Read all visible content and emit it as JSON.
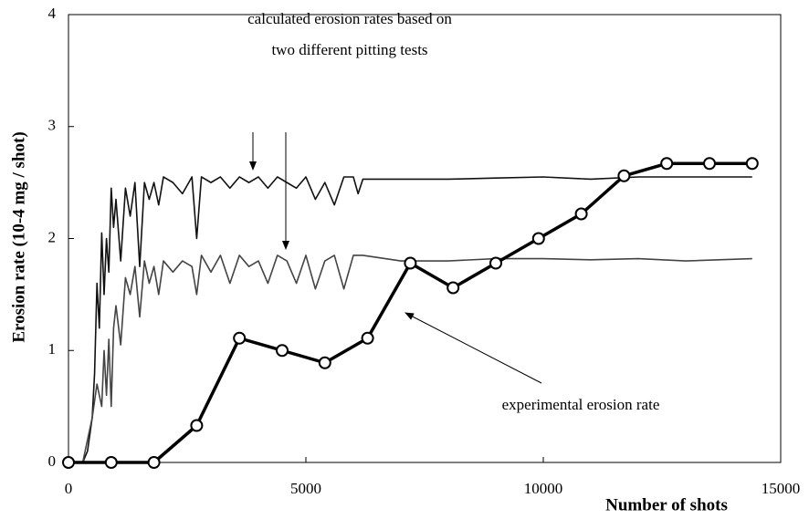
{
  "chart_data": {
    "type": "line",
    "xlabel": "Number of shots",
    "ylabel": "Erosion rate (10-4 mg / shot)",
    "xlim": [
      0,
      15000
    ],
    "ylim": [
      0,
      4
    ],
    "xticks": [
      0,
      5000,
      10000,
      15000
    ],
    "yticks": [
      0,
      1,
      2,
      3,
      4
    ],
    "grid": false,
    "annotations": [
      "calculated erosion rates based on",
      "two different pitting tests",
      "experimental erosion rate"
    ],
    "series": [
      {
        "color": "#000000",
        "markers": true,
        "width": 3.5,
        "x": [
          0,
          900,
          1800,
          2700,
          3600,
          4500,
          5400,
          6300,
          7200,
          8100,
          9000,
          9900,
          10800,
          11700,
          12600,
          13500,
          14400
        ],
        "values": [
          0,
          0,
          0,
          0.33,
          1.11,
          1.0,
          0.89,
          1.11,
          1.78,
          1.56,
          1.78,
          2.0,
          2.22,
          2.56,
          2.67,
          2.67,
          2.67
        ]
      },
      {
        "color": "#111111",
        "markers": false,
        "width": 1.6,
        "x": [
          0,
          200,
          300,
          400,
          500,
          550,
          600,
          650,
          700,
          750,
          800,
          850,
          900,
          950,
          1000,
          1100,
          1200,
          1300,
          1400,
          1500,
          1600,
          1700,
          1800,
          1900,
          2000,
          2200,
          2400,
          2600,
          2700,
          2800,
          3000,
          3200,
          3400,
          3600,
          3800,
          4000,
          4200,
          4400,
          4600,
          4800,
          5000,
          5200,
          5400,
          5600,
          5800,
          6000,
          6100,
          6200,
          7000,
          8000,
          9000,
          10000,
          11000,
          12000,
          13000,
          14400
        ],
        "values": [
          0,
          0,
          0,
          0.1,
          0.4,
          0.8,
          1.6,
          1.2,
          2.05,
          1.5,
          2.0,
          1.7,
          2.45,
          2.1,
          2.35,
          1.8,
          2.45,
          2.2,
          2.5,
          1.75,
          2.5,
          2.35,
          2.5,
          2.3,
          2.55,
          2.5,
          2.4,
          2.55,
          2.0,
          2.55,
          2.5,
          2.55,
          2.45,
          2.55,
          2.5,
          2.55,
          2.45,
          2.55,
          2.5,
          2.45,
          2.55,
          2.35,
          2.5,
          2.3,
          2.55,
          2.55,
          2.4,
          2.53,
          2.53,
          2.53,
          2.54,
          2.55,
          2.53,
          2.55,
          2.55,
          2.55
        ]
      },
      {
        "color": "#444444",
        "markers": false,
        "width": 1.6,
        "x": [
          0,
          300,
          400,
          500,
          600,
          700,
          750,
          800,
          850,
          900,
          950,
          1000,
          1100,
          1200,
          1300,
          1400,
          1500,
          1600,
          1700,
          1800,
          1900,
          2000,
          2200,
          2400,
          2600,
          2700,
          2800,
          3000,
          3200,
          3400,
          3600,
          3800,
          4000,
          4200,
          4400,
          4600,
          4800,
          5000,
          5200,
          5400,
          5600,
          5800,
          6000,
          6200,
          7000,
          8000,
          9000,
          10000,
          11000,
          12000,
          13000,
          14400
        ],
        "values": [
          0,
          0,
          0.2,
          0.4,
          0.7,
          0.5,
          1.0,
          0.6,
          1.1,
          0.5,
          1.2,
          1.4,
          1.05,
          1.65,
          1.5,
          1.75,
          1.3,
          1.8,
          1.6,
          1.75,
          1.5,
          1.8,
          1.7,
          1.8,
          1.75,
          1.5,
          1.85,
          1.7,
          1.85,
          1.6,
          1.85,
          1.75,
          1.8,
          1.6,
          1.85,
          1.8,
          1.6,
          1.85,
          1.55,
          1.8,
          1.85,
          1.55,
          1.85,
          1.85,
          1.8,
          1.8,
          1.82,
          1.82,
          1.81,
          1.82,
          1.8,
          1.82
        ]
      }
    ]
  }
}
